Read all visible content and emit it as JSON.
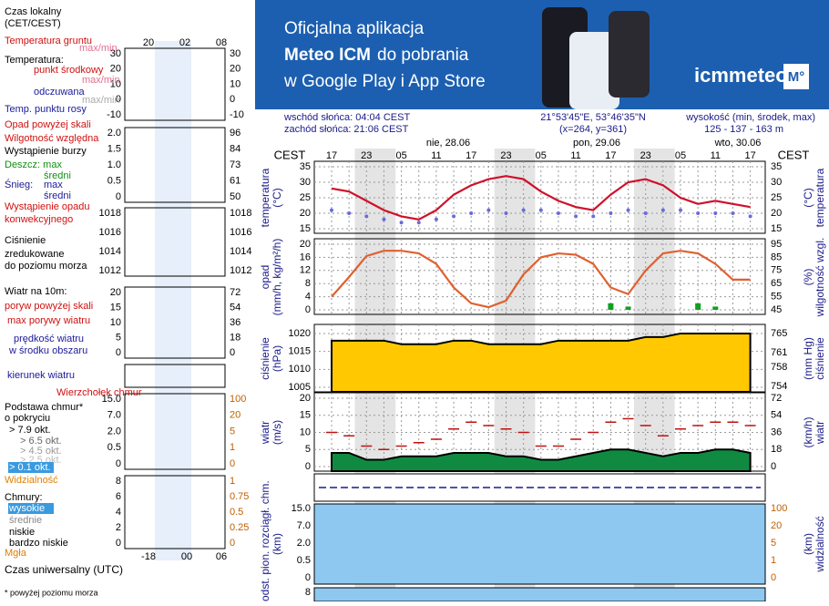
{
  "banner": {
    "line1": "Oficjalna aplikacja",
    "line2_bold": "Meteo ICM",
    "line2_rest": "do pobrania",
    "line3": "w Google Play i App Store",
    "logo": "icmmeteo",
    "badge": "M°"
  },
  "header": {
    "sunrise": "wschód słońca: 04:04 CEST",
    "sunset": "zachód słońca: 21:06 CEST",
    "coords": "21°53'45\"E, 53°46'35\"N",
    "grid_point": "(x=264,  y=361)",
    "elevation_label": "wysokość (min, środek, max)",
    "elevation": "125 - 137 - 163 m"
  },
  "time_axis": {
    "tz_left": "CEST",
    "tz_right": "CEST",
    "dates": [
      "nie, 28.06",
      "pon, 29.06",
      "wto, 30.06"
    ],
    "categories": [
      "17",
      null,
      "23",
      null,
      "05",
      null,
      "11",
      null,
      "17",
      null,
      "23",
      null,
      "05",
      null,
      "11",
      null,
      "17",
      null,
      "23",
      null,
      "05",
      null,
      "11",
      null,
      "17"
    ]
  },
  "legend": {
    "items": [
      "Czas lokalny",
      "(CET/CEST)",
      "Temperatura gruntu",
      "max/min",
      "Temperatura:",
      "punkt środkowy",
      "max/min",
      "odczuwana",
      "max/min",
      "Temp. punktu rosy",
      "Opad powyżej skali",
      "Wilgotność względna",
      "Wystąpienie burzy",
      "Deszcz: max",
      "średni",
      "Śnieg:",
      "max",
      "średni",
      "Wystąpienie opadu",
      "konwekcyjnego",
      "Ciśnienie",
      "zredukowane",
      "do poziomu morza",
      "Wiatr na 10m:",
      "poryw powyżej skali",
      "max porywy wiatru",
      "prędkość wiatru",
      "w środku obszaru",
      "kierunek wiatru",
      "Wierzchołek chmur",
      "Podstawa chmur*",
      "o pokryciu",
      "> 7.9 okt.",
      "> 6.5 okt.",
      "> 4.5 okt.",
      "> 2.5 okt.",
      "> 0.1 okt.",
      "Widzialność",
      "Chmury:",
      "wysokie",
      "średnie",
      "niskie",
      "bardzo niskie",
      "Mgła",
      "Czas uniwersalny (UTC)",
      "* powyżej poziomu morza"
    ],
    "top_hours": [
      "20",
      "02",
      "08"
    ],
    "bottom_hours": [
      "-18",
      "00",
      "06"
    ],
    "ticks_left": [
      [
        "30",
        "20",
        "10",
        "0",
        "-10"
      ],
      [
        "2.0",
        "1.5",
        "1.0",
        "0.5",
        "0"
      ],
      [
        "1018",
        "1016",
        "1014",
        "1012"
      ],
      [
        "20",
        "15",
        "10",
        "5",
        "0"
      ],
      [
        "15.0",
        "7.0",
        "2.0",
        "0.5",
        "0"
      ],
      [
        "8",
        "6",
        "4",
        "2",
        "0"
      ]
    ],
    "ticks_right": [
      [
        "30",
        "20",
        "10",
        "0",
        "-10"
      ],
      [
        "96",
        "84",
        "73",
        "61",
        "50"
      ],
      [
        "1018",
        "1016",
        "1014",
        "1012"
      ],
      [
        "72",
        "54",
        "36",
        "18",
        "0"
      ],
      [
        "100",
        "20",
        "5",
        "1",
        "0"
      ],
      [
        "1",
        "0.75",
        "0.5",
        "0.25",
        "0"
      ]
    ]
  },
  "chart_data": [
    {
      "type": "line",
      "ylabel": "temperatura",
      "yunit": "(°C)",
      "y2label": "temperatura",
      "y2unit": "(°C)",
      "ylim": [
        15,
        35
      ],
      "yticks": [
        15,
        20,
        25,
        30,
        35
      ],
      "y2lim": [
        15,
        35
      ],
      "y2ticks": [
        15,
        20,
        25,
        30,
        35
      ],
      "grid": true,
      "series": [
        {
          "color": "#d0102a",
          "values": [
            28,
            27,
            24,
            21,
            19,
            18,
            21,
            26,
            29,
            31,
            32,
            31,
            27,
            24,
            22,
            21,
            26,
            30,
            31,
            29,
            25,
            23,
            24,
            23,
            22
          ]
        },
        {
          "type": "dots",
          "color": "#6a6ae0",
          "values": [
            21,
            20,
            19,
            18,
            17,
            17,
            18,
            19,
            20,
            21,
            20,
            21,
            21,
            20,
            19,
            19,
            20,
            21,
            20,
            21,
            21,
            20,
            20,
            20,
            19
          ]
        }
      ]
    },
    {
      "type": "line",
      "ylabel": "opad",
      "yunit": "(mm/h, kg/m²/h)",
      "y2label": "wilgotność wzgl.",
      "y2unit": "(%)",
      "ylim": [
        0,
        20
      ],
      "yticks": [
        0,
        4,
        8,
        12,
        16,
        20
      ],
      "y2lim": [
        45,
        95
      ],
      "y2ticks": [
        45,
        55,
        65,
        75,
        85,
        95
      ],
      "grid": true,
      "series": [
        {
          "type": "bar",
          "color": "#11a020",
          "values": [
            0,
            0,
            0,
            0,
            0,
            0,
            0,
            0,
            0,
            0,
            0,
            0,
            0,
            0,
            0,
            0,
            2,
            1,
            0,
            0,
            0,
            2,
            1,
            0,
            0
          ]
        },
        {
          "axis": "y2",
          "color": "#e06030",
          "values": [
            55,
            70,
            86,
            90,
            90,
            88,
            80,
            62,
            50,
            47,
            52,
            72,
            85,
            88,
            87,
            80,
            62,
            57,
            75,
            88,
            90,
            88,
            80,
            68,
            68
          ]
        }
      ]
    },
    {
      "type": "area",
      "ylabel": "ciśnienie",
      "yunit": "(hPa)",
      "y2label": "ciśnienie",
      "y2unit": "(mm Hg)",
      "ylim": [
        1005,
        1021
      ],
      "yticks": [
        1005,
        1010,
        1015,
        1020
      ],
      "y2lim": [
        753.8,
        765.8
      ],
      "y2ticks": [
        754,
        758,
        761,
        765
      ],
      "grid": true,
      "series": [
        {
          "color": "#ffc800",
          "values": [
            1018,
            1018,
            1018,
            1018,
            1017,
            1017,
            1017,
            1018,
            1018,
            1017,
            1017,
            1017,
            1017,
            1018,
            1018,
            1018,
            1018,
            1018,
            1019,
            1019,
            1020,
            1020,
            1020,
            1020,
            1020
          ]
        }
      ]
    },
    {
      "type": "area",
      "ylabel": "wiatr",
      "yunit": "(m/s)",
      "y2label": "wiatr",
      "y2unit": "(km/h)",
      "ylim": [
        0,
        20
      ],
      "yticks": [
        0,
        5,
        10,
        15,
        20
      ],
      "y2lim": [
        0,
        72
      ],
      "y2ticks": [
        0,
        18,
        36,
        54,
        72
      ],
      "grid": true,
      "series": [
        {
          "color": "#108a40",
          "values": [
            4,
            4,
            2,
            2,
            3,
            3,
            3,
            4,
            4,
            4,
            3,
            3,
            2,
            2,
            3,
            4,
            5,
            5,
            4,
            3,
            4,
            4,
            5,
            5,
            4
          ]
        },
        {
          "type": "dash",
          "color": "#c01010",
          "values": [
            10,
            9,
            6,
            5,
            6,
            7,
            8,
            11,
            13,
            12,
            11,
            10,
            6,
            6,
            8,
            10,
            13,
            14,
            12,
            9,
            11,
            12,
            13,
            13,
            12
          ]
        }
      ]
    }
  ],
  "cloud_panel": {
    "ylabel": "podst. pion. rozciągł. chm.",
    "yunit": "(km)",
    "y2label": "widzialność",
    "y2unit": "(km)",
    "yticks": [
      "15.0",
      "7.0",
      "2.0",
      "0.5",
      "0"
    ],
    "y2ticks": [
      "100",
      "20",
      "5",
      "1",
      "0"
    ],
    "next_tick": "8"
  }
}
